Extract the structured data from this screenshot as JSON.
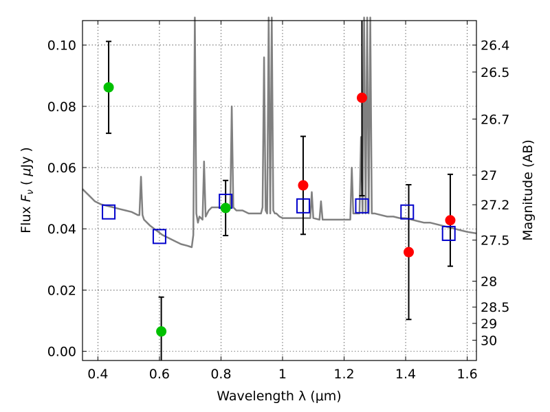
{
  "chart_data": {
    "type": "scatter",
    "xlabel": "Wavelength  λ (μm)",
    "ylabel": "Flux  F_ν  ( μJy )",
    "ylabel_parts": {
      "pre": "Flux  ",
      "var": "F",
      "sub": "ν",
      "mid": "  ( ",
      "mu": "μ",
      "post": "Jy )"
    },
    "y2label": "Magnitude (AB)",
    "xlim": [
      0.35,
      1.63
    ],
    "ylim": [
      -0.003,
      0.108
    ],
    "grid": true,
    "x_ticks": [
      0.4,
      0.6,
      0.8,
      1.0,
      1.2,
      1.4,
      1.6
    ],
    "x_tick_labels": [
      "0.4",
      "0.6",
      "0.8",
      "1",
      "1.2",
      "1.4",
      "1.6"
    ],
    "y_ticks": [
      0.0,
      0.02,
      0.04,
      0.06,
      0.08,
      0.1
    ],
    "y_tick_labels": [
      "0.00",
      "0.02",
      "0.04",
      "0.06",
      "0.08",
      "0.10"
    ],
    "y2_ticks": [
      "26.4",
      "26.5",
      "26.7",
      "27",
      "27.2",
      "27.5",
      "28",
      "28.5",
      "29",
      "30"
    ],
    "colors": {
      "spectrum": "#808080",
      "green": "#00c000",
      "red": "#ff0000",
      "model_box": "#0000cc",
      "errorbar": "#000000"
    },
    "series": [
      {
        "marker": "green-circle",
        "x": [
          0.435,
          0.606,
          0.815
        ],
        "y": [
          0.0862,
          0.0065,
          0.0468
        ],
        "yerr": [
          0.015,
          0.0112,
          0.009
        ]
      },
      {
        "marker": "red-circle",
        "x": [
          1.067,
          1.258,
          1.41,
          1.545
        ],
        "y": [
          0.0542,
          0.0828,
          0.0324,
          0.0428
        ],
        "yerr": [
          0.016,
          0.032,
          0.022,
          0.015
        ]
      },
      {
        "marker": "blue-open-square",
        "x": [
          0.435,
          0.6,
          0.815,
          1.067,
          1.258,
          1.405,
          1.54
        ],
        "y": [
          0.0455,
          0.0375,
          0.049,
          0.0475,
          0.0475,
          0.0455,
          0.0385
        ]
      },
      {
        "marker": "gray-line",
        "x": [
          0.35,
          0.37,
          0.39,
          0.41,
          0.43,
          0.45,
          0.47,
          0.49,
          0.51,
          0.53,
          0.535,
          0.54,
          0.545,
          0.55,
          0.57,
          0.59,
          0.61,
          0.63,
          0.65,
          0.67,
          0.69,
          0.705,
          0.71,
          0.715,
          0.72,
          0.725,
          0.73,
          0.74,
          0.745,
          0.75,
          0.76,
          0.77,
          0.78,
          0.8,
          0.82,
          0.83,
          0.835,
          0.84,
          0.85,
          0.87,
          0.89,
          0.91,
          0.93,
          0.935,
          0.94,
          0.945,
          0.95,
          0.955,
          0.96,
          0.965,
          0.97,
          0.975,
          0.98,
          0.99,
          1.0,
          1.02,
          1.04,
          1.06,
          1.08,
          1.09,
          1.095,
          1.1,
          1.12,
          1.125,
          1.13,
          1.135,
          1.15,
          1.17,
          1.19,
          1.21,
          1.22,
          1.225,
          1.23,
          1.24,
          1.25,
          1.255,
          1.26,
          1.265,
          1.27,
          1.275,
          1.28,
          1.285,
          1.29,
          1.3,
          1.32,
          1.34,
          1.36,
          1.38,
          1.4,
          1.42,
          1.44,
          1.46,
          1.48,
          1.5,
          1.52,
          1.54,
          1.56,
          1.58,
          1.6,
          1.63
        ],
        "y": [
          0.053,
          0.051,
          0.049,
          0.048,
          0.0475,
          0.047,
          0.0465,
          0.046,
          0.0455,
          0.0445,
          0.0445,
          0.057,
          0.0445,
          0.043,
          0.041,
          0.0395,
          0.038,
          0.037,
          0.036,
          0.035,
          0.0345,
          0.034,
          0.038,
          0.11,
          0.045,
          0.042,
          0.044,
          0.043,
          0.062,
          0.044,
          0.046,
          0.047,
          0.047,
          0.047,
          0.046,
          0.047,
          0.08,
          0.047,
          0.046,
          0.046,
          0.045,
          0.045,
          0.045,
          0.047,
          0.096,
          0.046,
          0.045,
          0.11,
          0.045,
          0.11,
          0.046,
          0.045,
          0.045,
          0.044,
          0.0435,
          0.0435,
          0.0435,
          0.0435,
          0.0435,
          0.0435,
          0.052,
          0.0435,
          0.043,
          0.049,
          0.043,
          0.043,
          0.043,
          0.043,
          0.043,
          0.043,
          0.043,
          0.06,
          0.045,
          0.045,
          0.045,
          0.07,
          0.045,
          0.11,
          0.045,
          0.11,
          0.045,
          0.11,
          0.045,
          0.045,
          0.0445,
          0.044,
          0.044,
          0.0435,
          0.0435,
          0.043,
          0.0425,
          0.042,
          0.042,
          0.0415,
          0.041,
          0.0405,
          0.04,
          0.0395,
          0.039,
          0.0385
        ]
      }
    ]
  }
}
